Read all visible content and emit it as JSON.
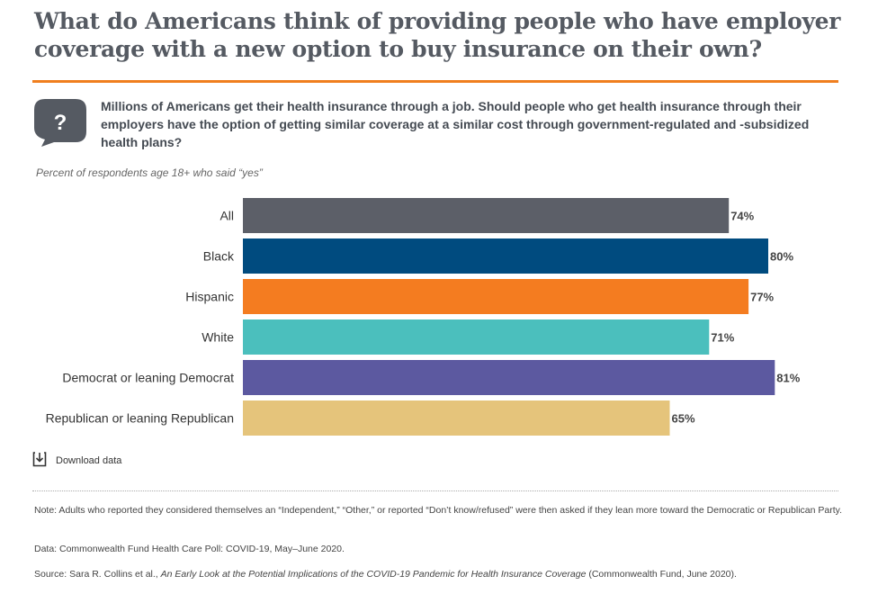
{
  "title": "What do Americans think of providing people who have employer coverage with a new option to buy insurance on their own?",
  "question": "Millions of Americans get their health insurance through a job. Should people who get health insurance through their employers have the option of getting similar coverage at a similar cost through government-regulated and -subsidized health plans?",
  "subtitle": "Percent of respondents age 18+ who said “yes”",
  "download_label": "Download data",
  "note": "Note: Adults who reported they considered themselves an “Independent,” “Other,” or reported “Don’t know/refused” were then asked if they lean more toward the Democratic or Republican Party.",
  "data_source": "Data: Commonwealth Fund Health Care Poll: COVID-19, May–June 2020.",
  "source": {
    "prefix": "Source: Sara R. Collins et al., ",
    "title": "An Early Look at the Potential Implications of the COVID-19 Pandemic for Health Insurance Coverage",
    "suffix": " (Commonwealth Fund, June 2020)."
  },
  "icons": {
    "question": "question-bubble-icon",
    "download": "download-icon"
  },
  "chart_data": {
    "type": "bar",
    "orientation": "horizontal",
    "categories": [
      "All",
      "Black",
      "Hispanic",
      "White",
      "Democrat or leaning Democrat",
      "Republican or leaning Republican"
    ],
    "values": [
      74,
      80,
      77,
      71,
      81,
      65
    ],
    "data_labels": [
      "74%",
      "80%",
      "77%",
      "71%",
      "81%",
      "65%"
    ],
    "colors": [
      "#5c5f68",
      "#004b7f",
      "#f47c20",
      "#4bbfbd",
      "#5c59a0",
      "#e5c47b"
    ],
    "unit": "%",
    "xlim": [
      0,
      100
    ],
    "grid": false,
    "legend": "none",
    "title": "",
    "xlabel": "",
    "ylabel": ""
  }
}
